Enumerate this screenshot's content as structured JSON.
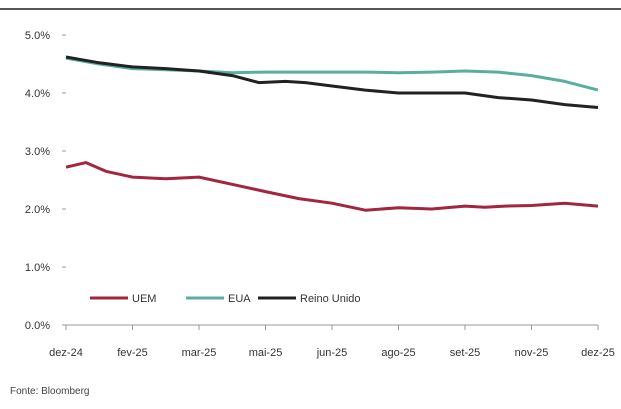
{
  "chart_data": {
    "type": "line",
    "title": "",
    "xlabel": "",
    "ylabel": "",
    "ylim": [
      0,
      5
    ],
    "y_ticks": [
      "0.0%",
      "1.0%",
      "2.0%",
      "3.0%",
      "4.0%",
      "5.0%"
    ],
    "x_ticks": [
      "dez-24",
      "fev-25",
      "mar-25",
      "mai-25",
      "jun-25",
      "ago-25",
      "set-25",
      "nov-25",
      "dez-25"
    ],
    "grid": false,
    "legend_position": "bottom-left",
    "series": [
      {
        "name": "UEM",
        "color": "#a3253f",
        "x": [
          0,
          0.3,
          0.6,
          1,
          1.5,
          2,
          2.6,
          3,
          3.5,
          4,
          4.5,
          5,
          5.5,
          6,
          6.3,
          6.6,
          7,
          7.5,
          8
        ],
        "values": [
          2.72,
          2.8,
          2.65,
          2.55,
          2.52,
          2.55,
          2.4,
          2.3,
          2.18,
          2.1,
          1.98,
          2.02,
          2.0,
          2.05,
          2.03,
          2.05,
          2.06,
          2.1,
          2.05
        ]
      },
      {
        "name": "EUA",
        "color": "#5aaea0",
        "x": [
          0,
          0.5,
          1,
          1.5,
          2,
          2.5,
          3,
          3.5,
          4,
          4.5,
          5,
          5.5,
          6,
          6.5,
          7,
          7.5,
          8
        ],
        "values": [
          4.6,
          4.5,
          4.42,
          4.4,
          4.38,
          4.35,
          4.36,
          4.36,
          4.36,
          4.36,
          4.35,
          4.36,
          4.38,
          4.36,
          4.3,
          4.2,
          4.05
        ]
      },
      {
        "name": "Reino Unido",
        "color": "#222222",
        "x": [
          0,
          0.5,
          1,
          1.5,
          2,
          2.5,
          2.9,
          3.3,
          3.6,
          4,
          4.5,
          5,
          5.5,
          6,
          6.5,
          7,
          7.5,
          8
        ],
        "values": [
          4.62,
          4.52,
          4.45,
          4.42,
          4.38,
          4.3,
          4.18,
          4.2,
          4.18,
          4.12,
          4.05,
          4.0,
          4.0,
          4.0,
          3.92,
          3.88,
          3.8,
          3.75
        ]
      }
    ]
  },
  "source_note": "Fonte: Bloomberg"
}
